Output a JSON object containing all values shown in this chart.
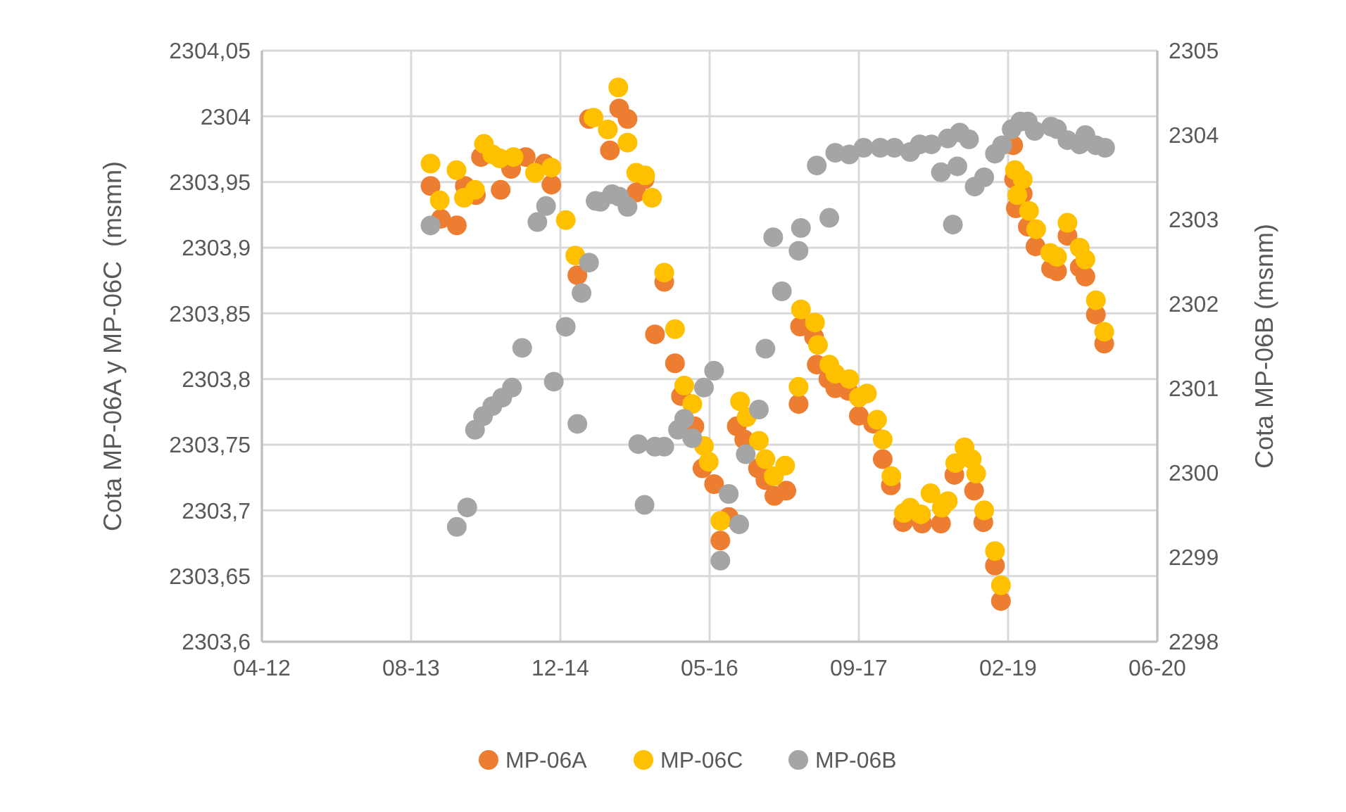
{
  "chart_data": {
    "type": "scatter",
    "ylabel": "Cota MP-06A y MP-06C  (msmn)",
    "y2label": "Cota MP-06B (msnm)",
    "grid": true,
    "legend": "bottom",
    "marker": "circle",
    "xlim": [
      "2012-04-01",
      "2020-06-18"
    ],
    "xticks": [
      {
        "value": "2012-04-01",
        "label": "04-12"
      },
      {
        "value": "2013-08-14",
        "label": "08-13"
      },
      {
        "value": "2014-12-27",
        "label": "12-14"
      },
      {
        "value": "2016-05-10",
        "label": "05-16"
      },
      {
        "value": "2017-09-22",
        "label": "09-17"
      },
      {
        "value": "2019-02-04",
        "label": "02-19"
      },
      {
        "value": "2020-06-18",
        "label": "06-20"
      }
    ],
    "ylim": [
      2303.6,
      2304.05
    ],
    "yticks": [
      {
        "value": 2303.6,
        "label": "2303,6"
      },
      {
        "value": 2303.65,
        "label": "2303,65"
      },
      {
        "value": 2303.7,
        "label": "2303,7"
      },
      {
        "value": 2303.75,
        "label": "2303,75"
      },
      {
        "value": 2303.8,
        "label": "2303,8"
      },
      {
        "value": 2303.85,
        "label": "2303,85"
      },
      {
        "value": 2303.9,
        "label": "2303,9"
      },
      {
        "value": 2303.95,
        "label": "2303,95"
      },
      {
        "value": 2304,
        "label": "2304"
      },
      {
        "value": 2304.05,
        "label": "2304,05"
      }
    ],
    "y2lim": [
      2298,
      2305
    ],
    "y2ticks": [
      2298,
      2299,
      2300,
      2301,
      2302,
      2303,
      2304,
      2305
    ],
    "series": [
      {
        "name": "MP-06A",
        "color": "#ed7d31",
        "x": [
          "2013-10-18",
          "2013-11-22",
          "2014-01-14",
          "2014-02-10",
          "2014-03-19",
          "2014-04-05",
          "2014-06-10",
          "2014-07-15",
          "2014-09-02",
          "2014-11-04",
          "2014-11-27",
          "2015-02-22",
          "2015-04-02",
          "2015-06-11",
          "2015-07-12",
          "2015-08-09",
          "2015-09-07",
          "2015-10-05",
          "2015-11-09",
          "2015-12-10",
          "2016-01-15",
          "2016-02-04",
          "2016-03-20",
          "2016-04-16",
          "2016-05-25",
          "2016-06-15",
          "2016-07-13",
          "2016-08-09",
          "2016-09-03",
          "2016-10-19",
          "2016-11-13",
          "2016-12-13",
          "2017-01-22",
          "2017-03-04",
          "2017-03-09",
          "2017-04-25",
          "2017-05-04",
          "2017-06-12",
          "2017-07-05",
          "2017-08-17",
          "2017-09-22",
          "2017-11-09",
          "2017-12-11",
          "2018-01-07",
          "2018-02-17",
          "2018-04-22",
          "2018-06-24",
          "2018-08-08",
          "2018-10-13",
          "2018-11-13",
          "2018-12-22",
          "2019-01-11",
          "2019-02-21",
          "2019-02-24",
          "2019-03-02",
          "2019-03-25",
          "2019-04-11",
          "2019-05-07",
          "2019-06-28",
          "2019-07-18",
          "2019-08-22",
          "2019-10-02",
          "2019-10-21",
          "2019-11-25",
          "2019-12-23"
        ],
        "values": [
          2303.947,
          2303.922,
          2303.917,
          2303.947,
          2303.94,
          2303.969,
          2303.944,
          2303.96,
          2303.969,
          2303.964,
          2303.948,
          2303.879,
          2303.998,
          2303.974,
          2304.006,
          2303.998,
          2303.942,
          2303.952,
          2303.834,
          2303.874,
          2303.812,
          2303.787,
          2303.764,
          2303.732,
          2303.72,
          2303.677,
          2303.695,
          2303.764,
          2303.754,
          2303.732,
          2303.723,
          2303.711,
          2303.715,
          2303.781,
          2303.84,
          2303.832,
          2303.811,
          2303.8,
          2303.793,
          2303.791,
          2303.772,
          2303.766,
          2303.739,
          2303.719,
          2303.691,
          2303.69,
          2303.69,
          2303.727,
          2303.715,
          2303.691,
          2303.658,
          2303.631,
          2303.978,
          2303.952,
          2303.93,
          2303.941,
          2303.916,
          2303.901,
          2303.884,
          2303.882,
          2303.909,
          2303.885,
          2303.878,
          2303.849,
          2303.827
        ]
      },
      {
        "name": "MP-06C",
        "color": "#ffc000",
        "x": [
          "2013-10-18",
          "2013-11-18",
          "2014-01-13",
          "2014-02-07",
          "2014-03-16",
          "2014-04-15",
          "2014-05-13",
          "2014-06-07",
          "2014-07-23",
          "2014-10-03",
          "2014-11-27",
          "2015-01-14",
          "2015-02-15",
          "2015-04-17",
          "2015-06-04",
          "2015-07-09",
          "2015-08-09",
          "2015-09-07",
          "2015-10-07",
          "2015-10-30",
          "2015-12-10",
          "2016-01-15",
          "2016-02-15",
          "2016-03-13",
          "2016-04-21",
          "2016-05-07",
          "2016-06-15",
          "2016-07-13",
          "2016-08-20",
          "2016-09-11",
          "2016-10-22",
          "2016-11-13",
          "2016-12-11",
          "2017-01-18",
          "2017-03-04",
          "2017-03-12",
          "2017-04-28",
          "2017-05-08",
          "2017-06-15",
          "2017-07-05",
          "2017-08-21",
          "2017-09-22",
          "2017-10-19",
          "2017-11-22",
          "2017-12-11",
          "2018-01-09",
          "2018-02-20",
          "2018-03-13",
          "2018-04-18",
          "2018-05-20",
          "2018-06-27",
          "2018-07-17",
          "2018-08-11",
          "2018-09-11",
          "2018-10-05",
          "2018-10-20",
          "2018-11-16",
          "2018-12-22",
          "2019-01-11",
          "2019-02-27",
          "2019-03-07",
          "2019-03-25",
          "2019-04-15",
          "2019-05-09",
          "2019-06-25",
          "2019-07-18",
          "2019-08-22",
          "2019-10-02",
          "2019-10-21",
          "2019-11-25",
          "2019-12-23"
        ],
        "values": [
          2303.964,
          2303.936,
          2303.959,
          2303.938,
          2303.944,
          2303.979,
          2303.971,
          2303.968,
          2303.969,
          2303.957,
          2303.961,
          2303.921,
          2303.894,
          2303.999,
          2303.99,
          2304.022,
          2303.98,
          2303.957,
          2303.955,
          2303.938,
          2303.881,
          2303.838,
          2303.795,
          2303.781,
          2303.749,
          2303.737,
          2303.692,
          null,
          2303.783,
          2303.771,
          2303.753,
          2303.739,
          2303.726,
          2303.734,
          2303.794,
          2303.853,
          2303.843,
          2303.826,
          2303.811,
          2303.804,
          2303.8,
          2303.786,
          2303.789,
          2303.769,
          2303.754,
          2303.726,
          2303.698,
          2303.702,
          2303.697,
          2303.713,
          2303.702,
          2303.707,
          2303.736,
          2303.748,
          2303.739,
          2303.728,
          2303.7,
          2303.669,
          2303.643,
          2303.959,
          2303.94,
          2303.952,
          2303.928,
          2303.914,
          2303.896,
          2303.893,
          2303.919,
          2303.9,
          2303.891,
          2303.86,
          2303.836
        ]
      },
      {
        "name": "MP-06B",
        "color": "#a5a5a5",
        "axis": "y2",
        "x": [
          "2013-10-18",
          "2014-01-14",
          "2014-02-18",
          "2014-03-16",
          "2014-04-12",
          "2014-05-13",
          "2014-06-15",
          "2014-07-18",
          "2014-08-21",
          "2014-10-11",
          "2014-11-09",
          "2014-12-05",
          "2015-01-14",
          "2015-02-22",
          "2015-03-08",
          "2015-04-02",
          "2015-04-24",
          "2015-05-10",
          "2015-06-18",
          "2015-07-12",
          "2015-08-09",
          "2015-09-14",
          "2015-10-05",
          "2015-11-09",
          "2015-12-10",
          "2016-01-25",
          "2016-02-15",
          "2016-03-13",
          "2016-04-21",
          "2016-05-25",
          "2016-06-15",
          "2016-07-13",
          "2016-08-17",
          "2016-09-08",
          "2016-10-22",
          "2016-11-13",
          "2016-12-09",
          "2017-01-07",
          "2017-03-04",
          "2017-03-12",
          "2017-05-04",
          "2017-06-15",
          "2017-07-05",
          "2017-08-21",
          "2017-10-08",
          "2017-12-03",
          "2018-01-19",
          "2018-03-13",
          "2018-04-14",
          "2018-05-23",
          "2018-06-24",
          "2018-07-17",
          "2018-08-03",
          "2018-08-18",
          "2018-08-26",
          "2018-09-26",
          "2018-10-15",
          "2018-11-16",
          "2018-12-22",
          "2019-01-15",
          "2019-02-16",
          "2019-03-17",
          "2019-04-11",
          "2019-05-04",
          "2019-06-28",
          "2019-07-18",
          "2019-08-22",
          "2019-10-02",
          "2019-10-21",
          "2019-11-25",
          "2019-12-26"
        ],
        "values": [
          2302.93,
          2299.36,
          2299.59,
          2300.51,
          2300.67,
          2300.79,
          2300.89,
          2301.01,
          2301.48,
          2302.97,
          2303.16,
          2301.08,
          2301.73,
          2300.58,
          2302.13,
          2302.49,
          2303.22,
          2303.21,
          2303.3,
          2303.27,
          2303.15,
          2300.34,
          2299.62,
          2300.31,
          2300.31,
          2300.51,
          2300.64,
          2300.41,
          2301.01,
          2301.21,
          2298.96,
          2299.75,
          2299.39,
          2300.22,
          2300.75,
          2301.47,
          2302.79,
          2302.15,
          2302.63,
          2302.9,
          2303.64,
          2303.02,
          2303.79,
          2303.77,
          2303.85,
          2303.85,
          2303.85,
          2303.8,
          2303.89,
          2303.89,
          2303.56,
          2303.96,
          2302.94,
          2303.63,
          2304.03,
          2303.95,
          2303.39,
          2303.5,
          2303.78,
          2303.88,
          2304.07,
          2304.16,
          2304.16,
          2304.05,
          2304.1,
          2304.07,
          2303.94,
          2303.89,
          2304,
          2303.88,
          2303.85
        ]
      }
    ]
  }
}
